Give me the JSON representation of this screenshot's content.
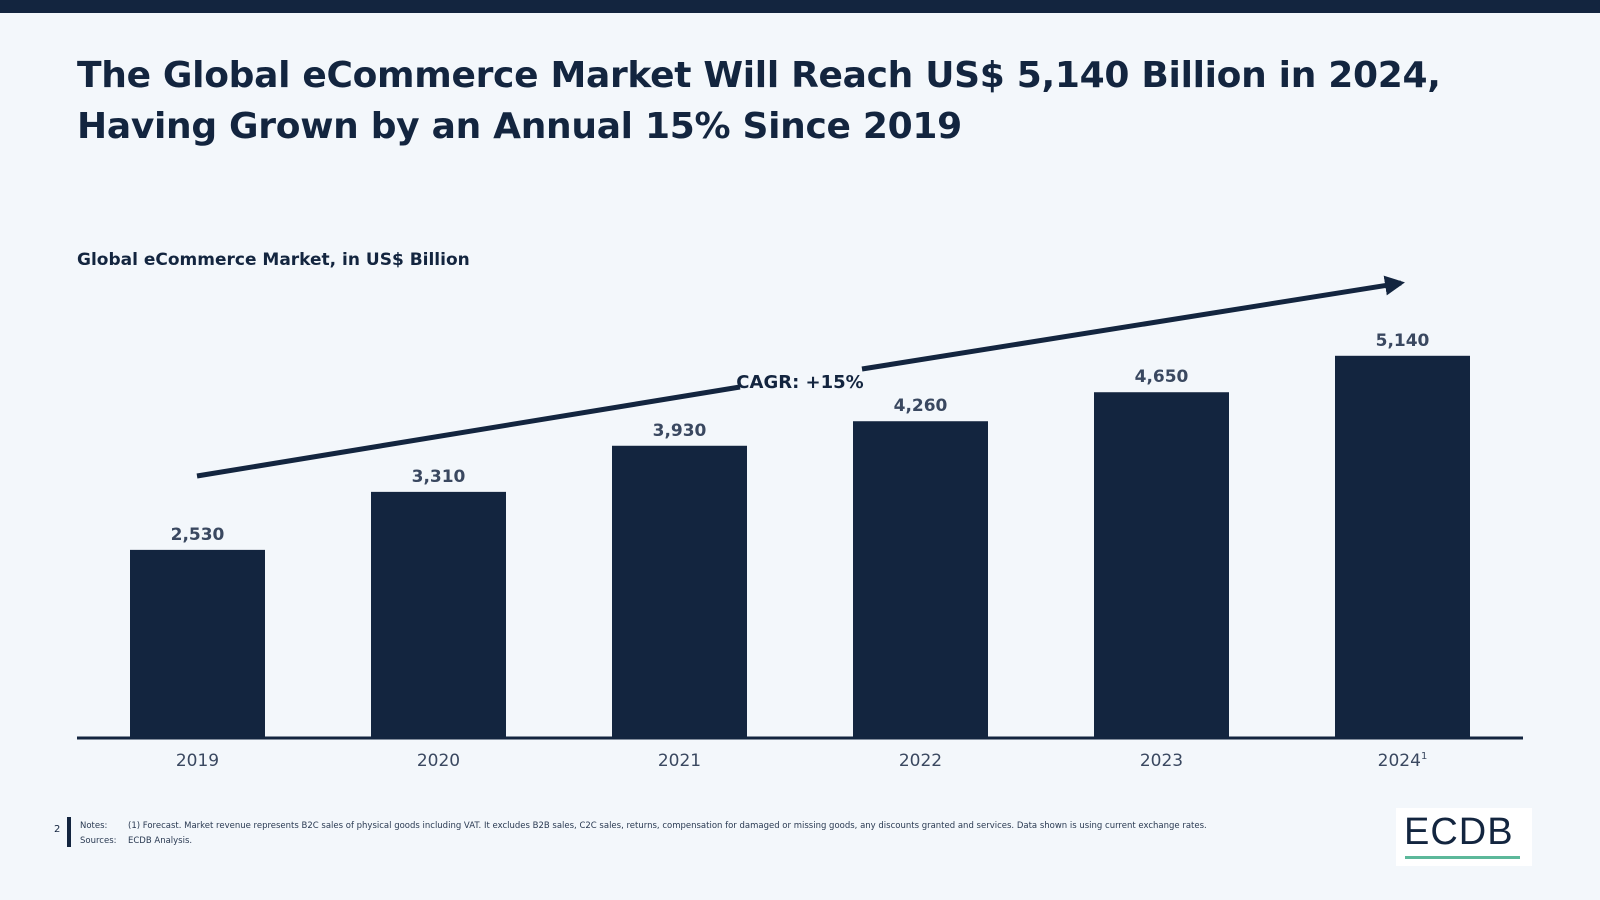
{
  "title": "The Global eCommerce Market Will Reach US$ 5,140 Billion in 2024, Having Grown by an Annual 15% Since 2019",
  "colors": {
    "bar": "#13253f",
    "background": "#f3f7fb",
    "accent": "#5cb89a"
  },
  "chart_data": {
    "type": "bar",
    "title": "Global eCommerce Market, in US$ Billion",
    "categories": [
      "2019",
      "2020",
      "2021",
      "2022",
      "2023",
      "2024"
    ],
    "category_notes": [
      "",
      "",
      "",
      "",
      "",
      "1"
    ],
    "values": [
      2530,
      3310,
      3930,
      4260,
      4650,
      5140
    ],
    "value_labels": [
      "2,530",
      "3,310",
      "3,930",
      "4,260",
      "4,650",
      "5,140"
    ],
    "ylim": [
      0,
      5500
    ],
    "grid": false,
    "annotation": "CAGR: +15%"
  },
  "footer": {
    "page_number": "2",
    "notes_label": "Notes:",
    "notes_text": "(1) Forecast. Market revenue represents B2C sales of physical goods including VAT. It excludes B2B sales, C2C sales, returns, compensation for damaged or missing goods, any discounts granted and services. Data shown is using current exchange rates.",
    "sources_label": "Sources:",
    "sources_text": "ECDB Analysis.",
    "logo": "ECDB"
  }
}
